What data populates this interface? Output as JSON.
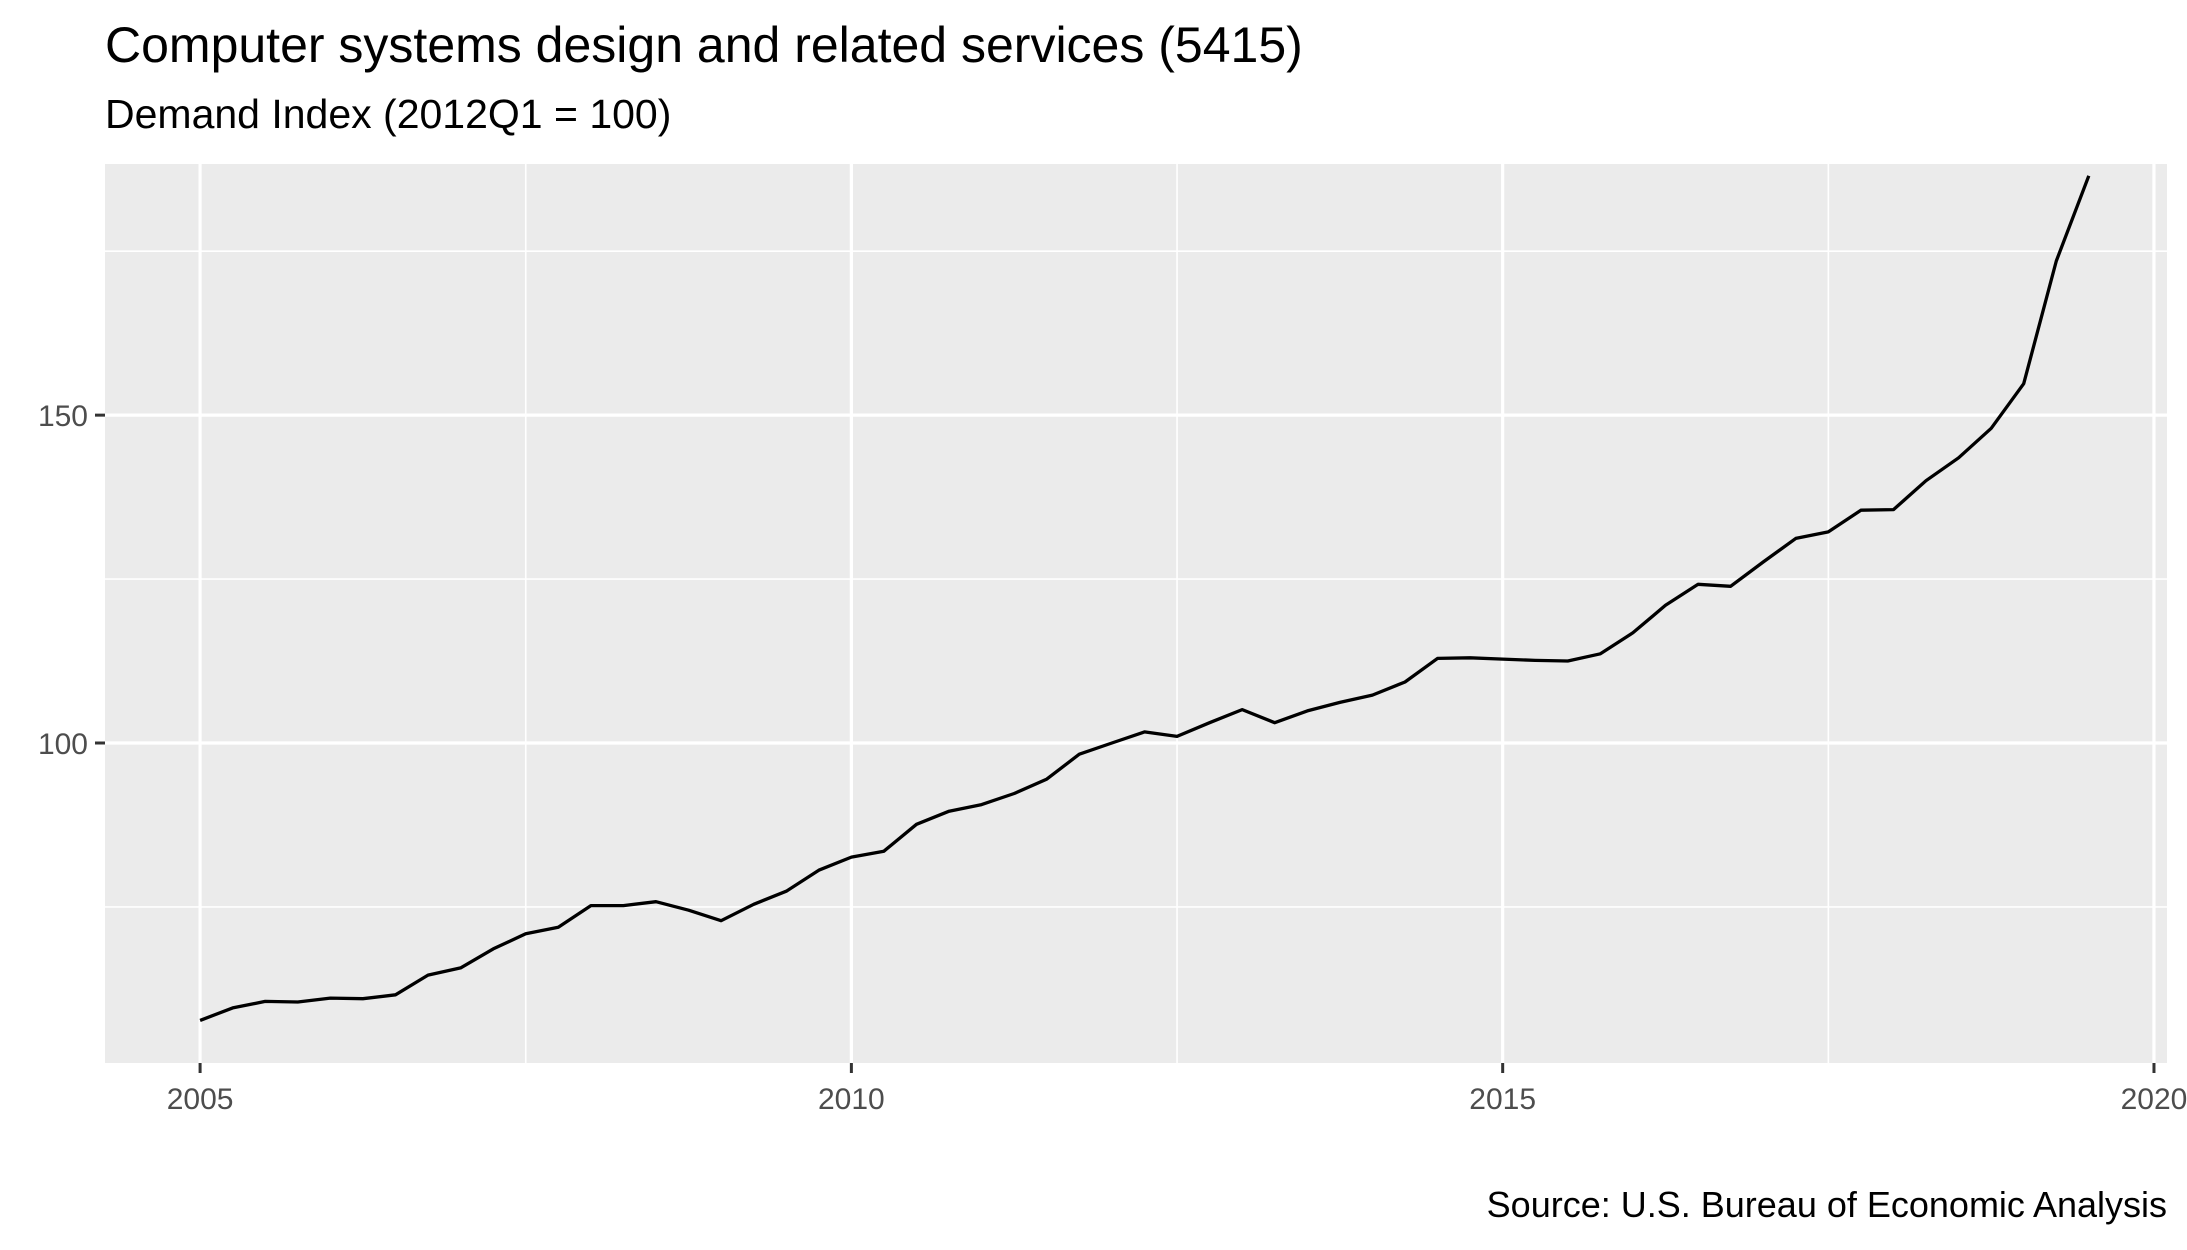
{
  "chart_data": {
    "type": "line",
    "title": "Computer systems design and related services (5415)",
    "subtitle": "Demand Index (2012Q1 = 100)",
    "caption": "Source: U.S. Bureau of Economic Analysis",
    "xlabel": "",
    "ylabel": "",
    "xlim": [
      2004.27,
      2020.1
    ],
    "ylim": [
      51.2,
      188.3
    ],
    "x_ticks": [
      2005,
      2010,
      2015,
      2020
    ],
    "x_tick_labels": [
      "2005",
      "2010",
      "2015",
      "2020"
    ],
    "y_ticks": [
      100,
      150
    ],
    "y_tick_labels": [
      "100",
      "150"
    ],
    "grid": true,
    "legend": "none",
    "line_color": "#000000",
    "panel_background": "#ebebeb",
    "grid_color": "#ffffff",
    "series": [
      {
        "x": [
          2005.0,
          2005.25,
          2005.5,
          2005.75,
          2006.0,
          2006.25,
          2006.5,
          2006.75,
          2007.0,
          2007.25,
          2007.5,
          2007.75,
          2008.0,
          2008.25,
          2008.5,
          2008.75,
          2009.0,
          2009.25,
          2009.5,
          2009.75,
          2010.0,
          2010.25,
          2010.5,
          2010.75,
          2011.0,
          2011.25,
          2011.5,
          2011.75,
          2012.0,
          2012.25,
          2012.5,
          2012.75,
          2013.0,
          2013.25,
          2013.5,
          2013.75,
          2014.0,
          2014.25,
          2014.5,
          2014.75,
          2015.0,
          2015.25,
          2015.5,
          2015.75,
          2016.0,
          2016.25,
          2016.5,
          2016.75,
          2017.0,
          2017.25,
          2017.5,
          2017.75,
          2018.0,
          2018.25,
          2018.5,
          2018.75,
          2019.0,
          2019.25,
          2019.5
        ],
        "values": [
          57.7,
          59.6,
          60.6,
          60.5,
          61.1,
          61.0,
          61.6,
          64.6,
          65.7,
          68.6,
          70.9,
          71.9,
          75.2,
          75.2,
          75.8,
          74.5,
          72.9,
          75.4,
          77.4,
          80.6,
          82.6,
          83.5,
          87.6,
          89.6,
          90.6,
          92.3,
          94.5,
          98.3,
          100.0,
          101.7,
          101.0,
          103.1,
          105.1,
          103.1,
          104.9,
          106.2,
          107.3,
          109.3,
          112.9,
          113.0,
          112.8,
          112.6,
          112.5,
          113.6,
          116.8,
          121.0,
          124.2,
          123.9,
          127.6,
          131.2,
          132.2,
          135.5,
          135.6,
          140.0,
          143.5,
          148.0,
          154.8,
          173.5,
          186.5
        ]
      }
    ]
  }
}
